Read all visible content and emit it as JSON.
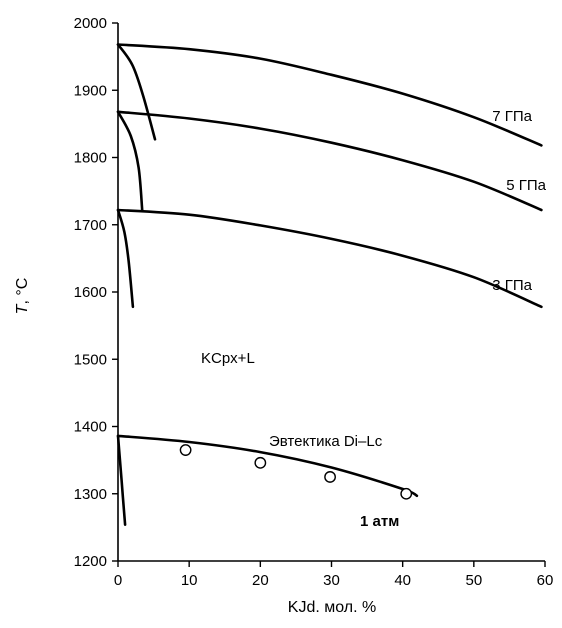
{
  "chart_data": {
    "type": "line",
    "title": "",
    "xlabel": "KJd. мол. %",
    "ylabel": "T, °C",
    "ylabel_italic_part": "T",
    "ylabel_rest": ", °C",
    "xlim": [
      0,
      60
    ],
    "ylim": [
      1200,
      2000
    ],
    "xticks": [
      0,
      10,
      20,
      30,
      40,
      50,
      60
    ],
    "yticks": [
      1200,
      1300,
      1400,
      1500,
      1600,
      1700,
      1800,
      1900,
      2000
    ],
    "grid": false,
    "series": [
      {
        "name": "7 ГПа",
        "x": [
          0,
          10,
          20,
          30,
          40,
          50,
          59.5
        ],
        "y": [
          1968,
          1961,
          1947,
          1923,
          1895,
          1860,
          1818
        ]
      },
      {
        "name": "5 ГПа",
        "x": [
          0,
          10,
          20,
          30,
          40,
          50,
          59.5
        ],
        "y": [
          1868,
          1858,
          1843,
          1822,
          1796,
          1764,
          1722
        ]
      },
      {
        "name": "3 ГПа",
        "x": [
          0,
          10,
          20,
          30,
          40,
          50,
          59.5
        ],
        "y": [
          1722,
          1715,
          1699,
          1679,
          1654,
          1622,
          1578
        ]
      },
      {
        "name": "1 атм",
        "x": [
          0,
          10,
          20,
          30,
          40,
          42
        ],
        "y": [
          1386,
          1377,
          1362,
          1339,
          1307,
          1297
        ]
      }
    ],
    "boundaries": [
      {
        "of": "7 ГПа",
        "x": [
          0,
          2,
          3.5,
          5.2
        ],
        "y": [
          1968,
          1938,
          1893,
          1827
        ]
      },
      {
        "of": "5 ГПа",
        "x": [
          0,
          1.8,
          2.9,
          3.4
        ],
        "y": [
          1868,
          1832,
          1785,
          1722
        ]
      },
      {
        "of": "3 ГПа",
        "x": [
          0,
          0.9,
          1.5,
          2.1
        ],
        "y": [
          1722,
          1689,
          1645,
          1578
        ]
      },
      {
        "of": "1 атм",
        "x": [
          0,
          0.5,
          1
        ],
        "y": [
          1386,
          1320,
          1254
        ]
      }
    ],
    "points": {
      "x": [
        9.5,
        20,
        29.8,
        40.5
      ],
      "y": [
        1365,
        1346,
        1325,
        1300
      ]
    },
    "annotations": {
      "p7": "7 ГПа",
      "p5": "5 ГПа",
      "p3": "3 ГПа",
      "field": "KCpx+L",
      "eutectic": "Эвтектика Di–Lc",
      "atm": "1 атм"
    }
  }
}
